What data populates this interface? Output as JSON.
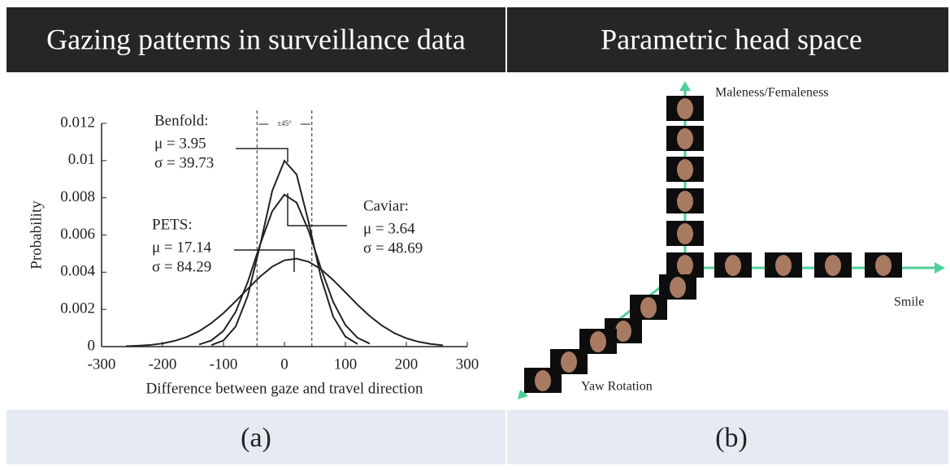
{
  "panels": [
    {
      "header": "Gazing patterns in surveillance data",
      "caption": "(a)"
    },
    {
      "header": "Parametric head space",
      "caption": "(b)"
    }
  ],
  "chart_data": {
    "type": "line",
    "ylabel": "Probability",
    "xlabel": "Difference between gaze and travel direction",
    "xlim": [
      -300,
      300
    ],
    "xticks": [
      -300,
      -200,
      -100,
      0,
      100,
      200,
      300
    ],
    "ylim": [
      0,
      0.012
    ],
    "yticks": [
      0,
      0.002,
      0.004,
      0.006,
      0.008,
      0.01,
      0.012
    ],
    "x": [
      -260,
      -240,
      -220,
      -200,
      -180,
      -160,
      -140,
      -120,
      -100,
      -80,
      -60,
      -40,
      -20,
      0,
      20,
      40,
      60,
      80,
      100,
      120,
      140,
      160,
      180,
      200,
      220,
      240,
      260
    ],
    "series": [
      {
        "color": "#222222",
        "values": [
          null,
          null,
          null,
          null,
          null,
          null,
          null,
          8e-05,
          0.00033,
          0.00108,
          0.00275,
          0.00544,
          0.00837,
          0.00999,
          0.00925,
          0.00665,
          0.00371,
          0.00161,
          0.00054,
          0.00014,
          null,
          null,
          null,
          null,
          null,
          null,
          null
        ]
      },
      {
        "color": "#222222",
        "values": [
          null,
          null,
          null,
          null,
          null,
          null,
          0.00011,
          0.00033,
          0.00085,
          0.00187,
          0.00349,
          0.00548,
          0.00728,
          0.00817,
          0.00774,
          0.0062,
          0.00419,
          0.0024,
          0.00116,
          0.00047,
          0.00016,
          null,
          null,
          null,
          null,
          null,
          null
        ]
      },
      {
        "color": "#222222",
        "values": [
          2e-05,
          5e-05,
          9e-05,
          0.00017,
          0.00031,
          0.00052,
          0.00083,
          0.00126,
          0.0018,
          0.00244,
          0.00311,
          0.00376,
          0.0043,
          0.00464,
          0.00473,
          0.00456,
          0.00416,
          0.00358,
          0.00292,
          0.00225,
          0.00164,
          0.00113,
          0.00073,
          0.00045,
          0.00026,
          0.00014,
          7e-05
        ]
      }
    ],
    "vlines": [
      -45,
      45
    ],
    "vlines_label": "±45°",
    "annotations": [
      [
        "Benfold:",
        "μ = 3.95",
        "σ = 39.73"
      ],
      [
        "PETS:",
        "μ = 17.14",
        "σ = 84.29"
      ],
      [
        "Caviar:",
        "μ = 3.64",
        "σ = 48.69"
      ]
    ]
  },
  "diagram": {
    "axes": [
      "Maleness/Femaleness",
      "Smile",
      "Yaw Rotation"
    ]
  }
}
